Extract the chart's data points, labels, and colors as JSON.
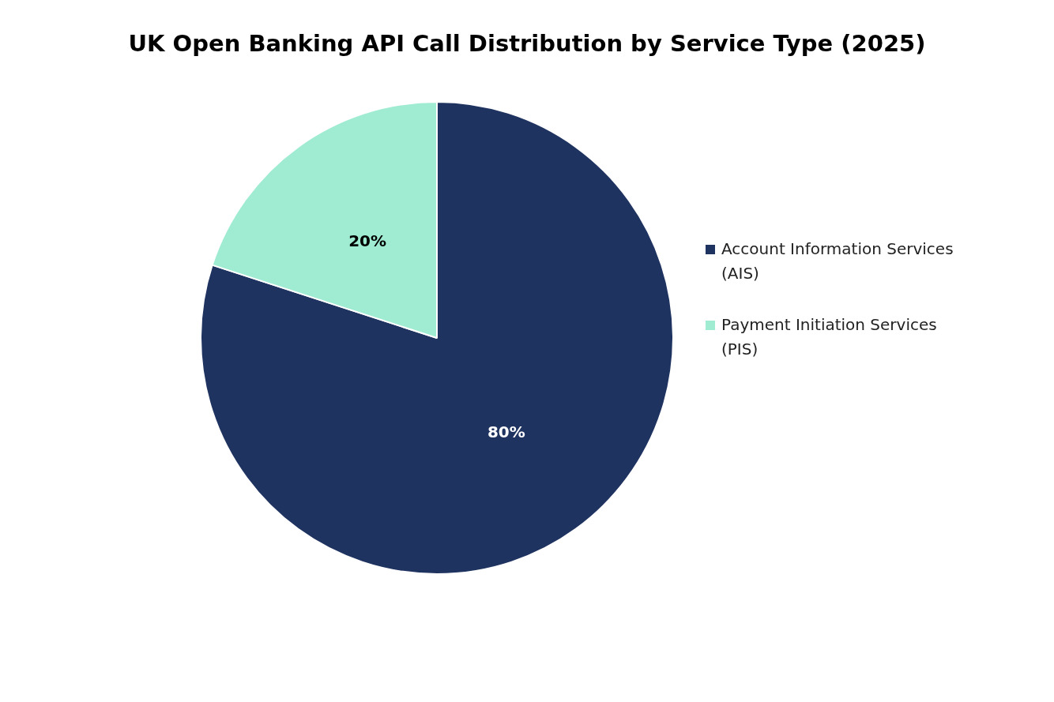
{
  "chart_data": {
    "type": "pie",
    "title": "UK Open Banking API Call Distribution by Service Type (2025)",
    "categories": [
      "Account Information Services (AIS)",
      "Payment Initiation Services (PIS)"
    ],
    "values": [
      80,
      20
    ],
    "colors": [
      "#1f3360",
      "#a0ecd2"
    ],
    "value_labels": [
      "80%",
      "20%"
    ],
    "legend": "right"
  }
}
